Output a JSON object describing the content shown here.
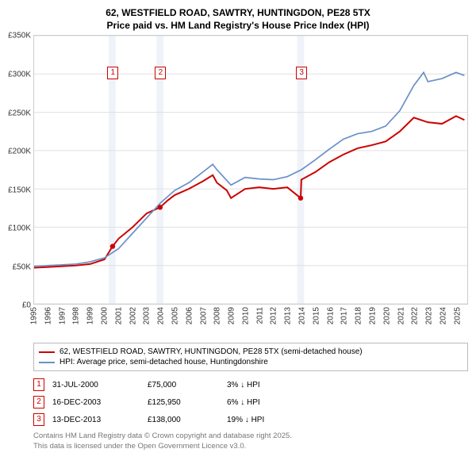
{
  "title": {
    "line1": "62, WESTFIELD ROAD, SAWTRY, HUNTINGDON, PE28 5TX",
    "line2": "Price paid vs. HM Land Registry's House Price Index (HPI)"
  },
  "chart": {
    "type": "line",
    "background_color": "#ffffff",
    "grid_color": "#e0e0e0",
    "y": {
      "min": 0,
      "max": 350000,
      "ticks": [
        0,
        50000,
        100000,
        150000,
        200000,
        250000,
        300000,
        350000
      ],
      "tick_labels": [
        "£0",
        "£50K",
        "£100K",
        "£150K",
        "£200K",
        "£250K",
        "£300K",
        "£350K"
      ],
      "label_fontsize": 10
    },
    "x": {
      "min": 1995,
      "max": 2025.8,
      "ticks": [
        1995,
        1996,
        1997,
        1998,
        1999,
        2000,
        2001,
        2002,
        2003,
        2004,
        2005,
        2006,
        2007,
        2008,
        2009,
        2010,
        2011,
        2012,
        2013,
        2014,
        2015,
        2016,
        2017,
        2018,
        2019,
        2020,
        2021,
        2022,
        2023,
        2024,
        2025
      ],
      "tick_labels": [
        "1995",
        "1996",
        "1997",
        "1998",
        "1999",
        "2000",
        "2001",
        "2002",
        "2003",
        "2004",
        "2005",
        "2006",
        "2007",
        "2008",
        "2009",
        "2010",
        "2011",
        "2012",
        "2013",
        "2014",
        "2015",
        "2016",
        "2017",
        "2018",
        "2019",
        "2020",
        "2021",
        "2022",
        "2023",
        "2024",
        "2025"
      ],
      "label_fontsize": 10
    },
    "bands": [
      {
        "from": 2000.3,
        "to": 2000.8
      },
      {
        "from": 2003.7,
        "to": 2004.2
      },
      {
        "from": 2013.7,
        "to": 2014.2
      }
    ],
    "series": [
      {
        "name": "price_paid",
        "color": "#cc0000",
        "line_width": 2,
        "points": [
          [
            1995,
            47000
          ],
          [
            1996,
            48000
          ],
          [
            1997,
            49000
          ],
          [
            1998,
            50000
          ],
          [
            1999,
            52000
          ],
          [
            2000,
            58000
          ],
          [
            2000.58,
            75000
          ],
          [
            2001,
            85000
          ],
          [
            2002,
            100000
          ],
          [
            2003,
            118000
          ],
          [
            2003.96,
            125950
          ],
          [
            2004.5,
            135000
          ],
          [
            2005,
            142000
          ],
          [
            2006,
            150000
          ],
          [
            2007,
            160000
          ],
          [
            2007.7,
            168000
          ],
          [
            2008,
            158000
          ],
          [
            2008.7,
            148000
          ],
          [
            2009,
            138000
          ],
          [
            2010,
            150000
          ],
          [
            2011,
            152000
          ],
          [
            2012,
            150000
          ],
          [
            2013,
            152000
          ],
          [
            2013.95,
            138000
          ],
          [
            2014,
            162000
          ],
          [
            2015,
            172000
          ],
          [
            2016,
            185000
          ],
          [
            2017,
            195000
          ],
          [
            2018,
            203000
          ],
          [
            2019,
            207000
          ],
          [
            2020,
            212000
          ],
          [
            2021,
            225000
          ],
          [
            2022,
            243000
          ],
          [
            2023,
            237000
          ],
          [
            2024,
            235000
          ],
          [
            2025,
            245000
          ],
          [
            2025.6,
            240000
          ]
        ]
      },
      {
        "name": "hpi",
        "color": "#6a8fc8",
        "line_width": 1.7,
        "points": [
          [
            1995,
            49000
          ],
          [
            1996,
            50000
          ],
          [
            1997,
            51000
          ],
          [
            1998,
            52000
          ],
          [
            1999,
            55000
          ],
          [
            2000,
            60000
          ],
          [
            2001,
            72000
          ],
          [
            2002,
            92000
          ],
          [
            2003,
            112000
          ],
          [
            2004,
            132000
          ],
          [
            2005,
            148000
          ],
          [
            2006,
            158000
          ],
          [
            2007,
            172000
          ],
          [
            2007.7,
            182000
          ],
          [
            2008,
            175000
          ],
          [
            2009,
            155000
          ],
          [
            2010,
            165000
          ],
          [
            2011,
            163000
          ],
          [
            2012,
            162000
          ],
          [
            2013,
            166000
          ],
          [
            2014,
            175000
          ],
          [
            2015,
            188000
          ],
          [
            2016,
            202000
          ],
          [
            2017,
            215000
          ],
          [
            2018,
            222000
          ],
          [
            2019,
            225000
          ],
          [
            2020,
            232000
          ],
          [
            2021,
            252000
          ],
          [
            2022,
            285000
          ],
          [
            2022.7,
            302000
          ],
          [
            2023,
            290000
          ],
          [
            2024,
            294000
          ],
          [
            2025,
            302000
          ],
          [
            2025.6,
            298000
          ]
        ]
      }
    ],
    "sale_markers": [
      {
        "n": "1",
        "x": 2000.58,
        "y": 75000,
        "color": "#cc0000"
      },
      {
        "n": "2",
        "x": 2003.96,
        "y": 125950,
        "color": "#cc0000"
      },
      {
        "n": "3",
        "x": 2013.95,
        "y": 138000,
        "color": "#cc0000"
      }
    ],
    "marker_box_top_y": 310000
  },
  "legend": {
    "items": [
      {
        "color": "#cc0000",
        "label": "62, WESTFIELD ROAD, SAWTRY, HUNTINGDON, PE28 5TX (semi-detached house)"
      },
      {
        "color": "#6a8fc8",
        "label": "HPI: Average price, semi-detached house, Huntingdonshire"
      }
    ]
  },
  "sales": [
    {
      "n": "1",
      "color": "#cc0000",
      "date": "31-JUL-2000",
      "price": "£75,000",
      "pct": "3% ↓ HPI"
    },
    {
      "n": "2",
      "color": "#cc0000",
      "date": "16-DEC-2003",
      "price": "£125,950",
      "pct": "6% ↓ HPI"
    },
    {
      "n": "3",
      "color": "#cc0000",
      "date": "13-DEC-2013",
      "price": "£138,000",
      "pct": "19% ↓ HPI"
    }
  ],
  "footer": {
    "line1": "Contains HM Land Registry data © Crown copyright and database right 2025.",
    "line2": "This data is licensed under the Open Government Licence v3.0."
  }
}
